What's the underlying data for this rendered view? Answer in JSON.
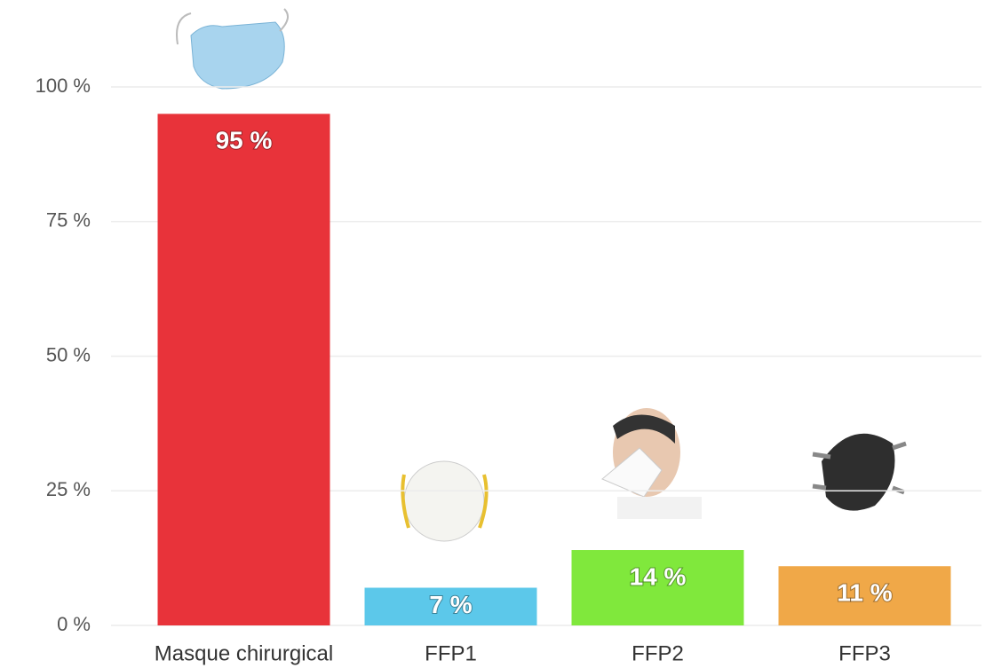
{
  "chart_data": {
    "type": "bar",
    "categories": [
      "Masque chirurgical",
      "FFP1",
      "FFP2",
      "FFP3"
    ],
    "values": [
      95,
      7,
      14,
      11
    ],
    "value_labels": [
      "95 %",
      "7 %",
      "14 %",
      "11 %"
    ],
    "colors": [
      "#e8333a",
      "#5cc8ea",
      "#80e83c",
      "#f0a848"
    ],
    "ylim": [
      0,
      100
    ],
    "yticks": [
      {
        "value": 0,
        "label": "0 %"
      },
      {
        "value": 25,
        "label": "25 %"
      },
      {
        "value": 50,
        "label": "50 %"
      },
      {
        "value": 75,
        "label": "75 %"
      },
      {
        "value": 100,
        "label": "100 %"
      }
    ],
    "grid": true
  }
}
